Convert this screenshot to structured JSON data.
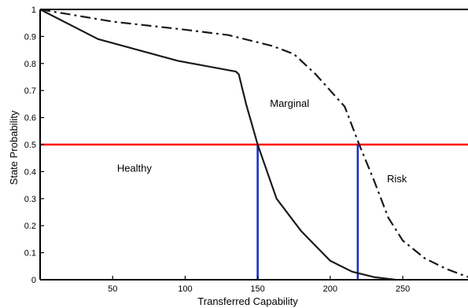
{
  "chart_data": {
    "type": "line",
    "title": "",
    "xlabel": "Transferred Capability",
    "ylabel": "State Probability",
    "xlim": [
      0,
      295
    ],
    "ylim": [
      0,
      1
    ],
    "grid": false,
    "x_ticks": [
      50,
      100,
      150,
      200,
      250
    ],
    "y_ticks": [
      0,
      0.1,
      0.2,
      0.3,
      0.4,
      0.5,
      0.6,
      0.7,
      0.8,
      0.9,
      1
    ],
    "x_tick_labels": [
      "50",
      "100",
      "150",
      "200",
      "250"
    ],
    "y_tick_labels": [
      "0",
      "0.1",
      "0.2",
      "0.3",
      "0.4",
      "0.5",
      "0.6",
      "0.7",
      "0.8",
      "0.9",
      "1"
    ],
    "series": [
      {
        "style": "solid",
        "color": "#1a1a1a",
        "points": [
          [
            0,
            1.0
          ],
          [
            40,
            0.89
          ],
          [
            95,
            0.81
          ],
          [
            135,
            0.77
          ],
          [
            137,
            0.76
          ],
          [
            142,
            0.65
          ],
          [
            150,
            0.5
          ],
          [
            163,
            0.3
          ],
          [
            180,
            0.18
          ],
          [
            200,
            0.07
          ],
          [
            215,
            0.03
          ],
          [
            230,
            0.01
          ],
          [
            245,
            0.0
          ]
        ]
      },
      {
        "style": "dash-dot",
        "color": "#1a1a1a",
        "points": [
          [
            0,
            1.0
          ],
          [
            50,
            0.955
          ],
          [
            100,
            0.925
          ],
          [
            130,
            0.905
          ],
          [
            160,
            0.865
          ],
          [
            175,
            0.835
          ],
          [
            190,
            0.76
          ],
          [
            200,
            0.7
          ],
          [
            210,
            0.64
          ],
          [
            220,
            0.5
          ],
          [
            230,
            0.37
          ],
          [
            240,
            0.23
          ],
          [
            250,
            0.145
          ],
          [
            265,
            0.08
          ],
          [
            280,
            0.04
          ],
          [
            295,
            0.01
          ]
        ]
      }
    ],
    "reference_lines": [
      {
        "orientation": "horizontal",
        "y": 0.5,
        "color": "#ff0000"
      },
      {
        "orientation": "vertical",
        "x": 150,
        "y_from": 0,
        "y_to": 0.5,
        "color": "#1a2fc4"
      },
      {
        "orientation": "vertical",
        "x": 219,
        "y_from": 0,
        "y_to": 0.5,
        "color": "#1a2fc4"
      }
    ],
    "annotations": [
      {
        "text": "Healthy",
        "x": 65,
        "y": 0.4
      },
      {
        "text": "Marginal",
        "x": 172,
        "y": 0.64
      },
      {
        "text": "Risk",
        "x": 246,
        "y": 0.36
      }
    ]
  }
}
